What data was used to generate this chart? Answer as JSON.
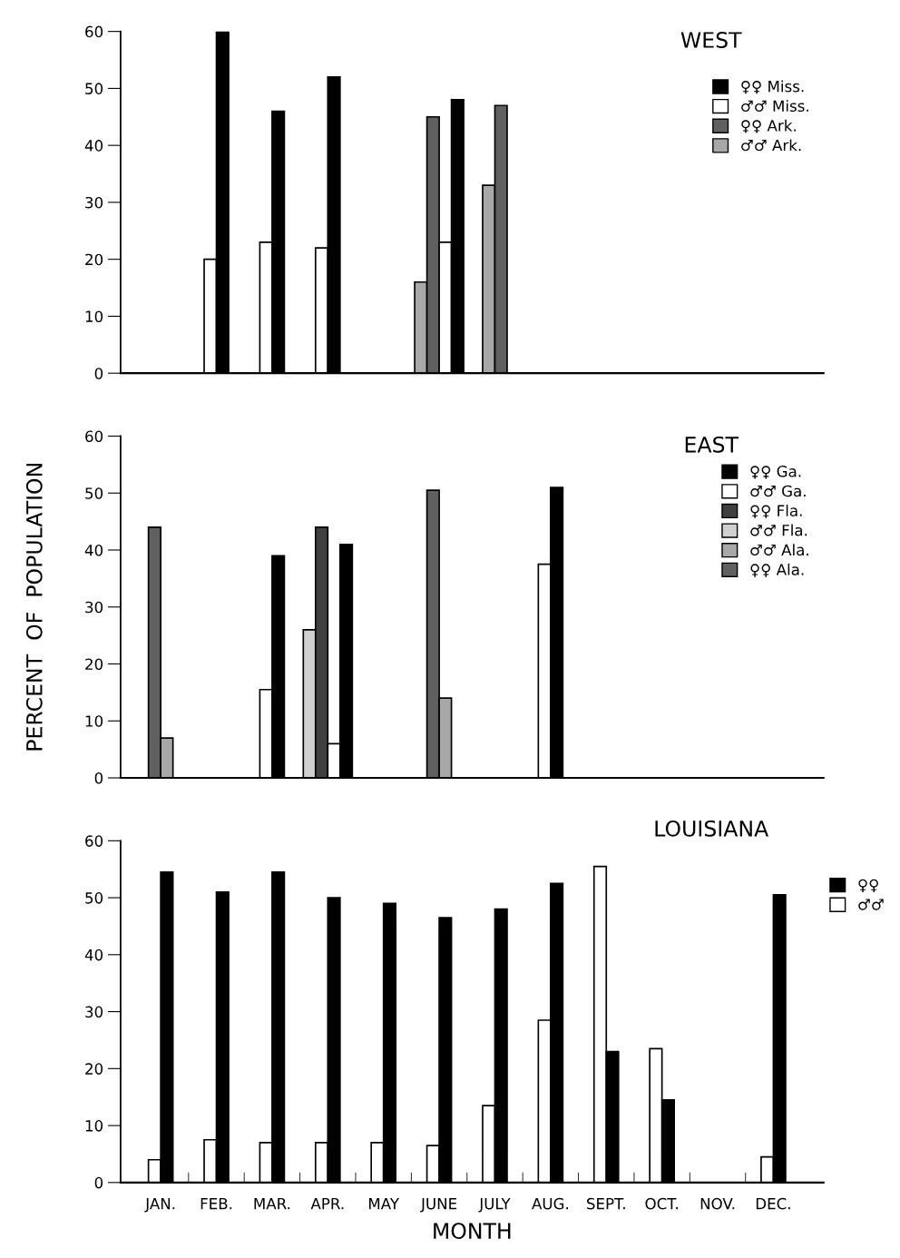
{
  "chart_data": [
    {
      "type": "bar",
      "title": "WEST",
      "categories": [
        null,
        null,
        null,
        null,
        null,
        null,
        null,
        null,
        null,
        null,
        null,
        null
      ],
      "ylim": [
        0,
        60
      ],
      "yticks": [
        0,
        10,
        20,
        30,
        40,
        50,
        60
      ],
      "tick_labels": "y",
      "legend": "right",
      "grid": false,
      "series": [
        {
          "name": "♀♀ Miss.",
          "color": "#000000",
          "values": [
            null,
            60,
            46,
            52,
            null,
            48,
            null,
            null,
            null,
            null,
            null,
            null
          ]
        },
        {
          "name": "♂♂ Miss.",
          "color": "#ffffff",
          "values": [
            null,
            20,
            23,
            22,
            null,
            23,
            null,
            null,
            null,
            null,
            null,
            null
          ]
        },
        {
          "name": "♀♀ Ark.",
          "color": "#606060",
          "values": [
            null,
            null,
            null,
            null,
            null,
            45,
            47,
            null,
            null,
            null,
            null,
            null
          ]
        },
        {
          "name": "♂♂ Ark.",
          "color": "#a8a8a8",
          "values": [
            null,
            null,
            null,
            null,
            null,
            16,
            33,
            null,
            null,
            null,
            null,
            null
          ]
        }
      ]
    },
    {
      "type": "bar",
      "title": "EAST",
      "ylabel": "PERCENT  OF  POPULATION",
      "categories": [
        null,
        null,
        null,
        null,
        null,
        null,
        null,
        null,
        null,
        null,
        null,
        null
      ],
      "ylim": [
        0,
        60
      ],
      "yticks": [
        0,
        10,
        20,
        30,
        40,
        50,
        60
      ],
      "tick_labels": "y",
      "legend": "right",
      "grid": false,
      "series": [
        {
          "name": "♀♀ Ga.",
          "color": "#000000",
          "values": [
            null,
            null,
            39,
            41,
            null,
            null,
            null,
            51,
            null,
            null,
            null,
            null
          ]
        },
        {
          "name": "♂♂ Ga.",
          "color": "#ffffff",
          "values": [
            null,
            null,
            15.5,
            6,
            null,
            null,
            null,
            37.5,
            null,
            null,
            null,
            null
          ]
        },
        {
          "name": "♀♀ Fla.",
          "color": "#404040",
          "values": [
            null,
            null,
            null,
            44,
            null,
            null,
            null,
            null,
            null,
            null,
            null,
            null
          ]
        },
        {
          "name": "♂♂ Fla.",
          "color": "#d0d0d0",
          "values": [
            null,
            null,
            null,
            26,
            null,
            null,
            null,
            null,
            null,
            null,
            null,
            null
          ]
        },
        {
          "name": "♂♂ Ala.",
          "color": "#a8a8a8",
          "values": [
            7,
            null,
            null,
            null,
            null,
            14,
            null,
            null,
            null,
            null,
            null,
            null
          ]
        },
        {
          "name": "♀♀ Ala.",
          "color": "#606060",
          "values": [
            44,
            null,
            null,
            null,
            null,
            50.5,
            null,
            null,
            null,
            null,
            null,
            null
          ]
        }
      ]
    },
    {
      "type": "bar",
      "title": "LOUISIANA",
      "xlabel": "MONTH",
      "categories": [
        "JAN.",
        "FEB.",
        "MAR.",
        "APR.",
        "MAY",
        "JUNE",
        "JULY",
        "AUG.",
        "SEPT.",
        "OCT.",
        "NOV.",
        "DEC."
      ],
      "ylim": [
        0,
        60
      ],
      "yticks": [
        0,
        10,
        20,
        30,
        40,
        50,
        60
      ],
      "legend": "top right",
      "grid": false,
      "series": [
        {
          "name": "♀♀",
          "color": "#000000",
          "values": [
            54.5,
            51,
            54.5,
            50,
            49,
            46.5,
            48,
            52.5,
            23,
            14.5,
            null,
            50.5
          ]
        },
        {
          "name": "♂♂",
          "color": "#ffffff",
          "values": [
            4,
            7.5,
            7,
            7,
            7,
            6.5,
            13.5,
            28.5,
            55.5,
            23.5,
            null,
            4.5
          ]
        }
      ]
    }
  ]
}
